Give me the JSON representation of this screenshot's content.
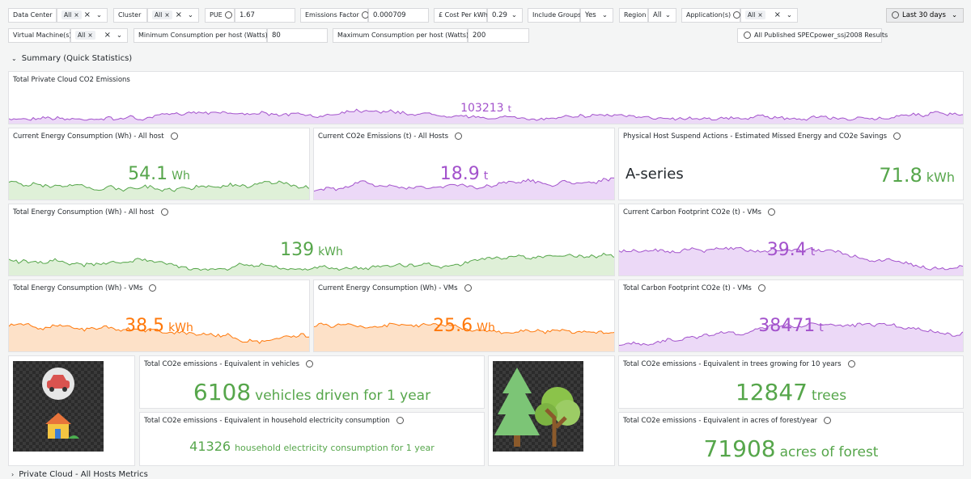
{
  "filters": [
    {
      "label": "Data Center",
      "value": "All"
    },
    {
      "label": "Cluster",
      "value": "All"
    },
    {
      "label": "PUE",
      "value": "1.67"
    },
    {
      "label": "Emissions Factor",
      "value": "0.000709"
    },
    {
      "label": "£ Cost Per kWh",
      "value": "0.29"
    },
    {
      "label": "Include Groups",
      "value": "Yes"
    },
    {
      "label": "Region",
      "value": "All"
    },
    {
      "label": "Application(s)",
      "value": "All"
    },
    {
      "label": "Virtual Machine(s)",
      "value": "All"
    },
    {
      "label": "Minimum Consumption per host (Watts)",
      "value": "80"
    },
    {
      "label": "Maximum Consumption per host (Watts)",
      "value": "200"
    }
  ],
  "time_range": "Last 30 days",
  "link_button": "All Published SPECpower_ssj2008 Results",
  "section": "Summary (Quick Statistics)",
  "panels": [
    {
      "title": "Total Private Cloud CO2 Emissions",
      "value": "103213",
      "unit": "t"
    },
    {
      "title": "Current Energy Consumption (Wh) - All host",
      "value": "54.1",
      "unit": "Wh"
    },
    {
      "title": "Current CO2e Emissions (t) - All Hosts",
      "value": "18.9",
      "unit": "t"
    },
    {
      "title": "Physical Host Suspend Actions - Estimated Missed Energy and CO2e Savings",
      "series_name": "A-series",
      "value": "71.8",
      "unit": "kWh"
    },
    {
      "title": "Total Energy Consumption (Wh) - All host",
      "value": "139",
      "unit": "kWh"
    },
    {
      "title": "Current Carbon Footprint CO2e (t) - VMs",
      "value": "39.4",
      "unit": "t"
    },
    {
      "title": "Total Energy Consumption (Wh) - VMs",
      "value": "38.5",
      "unit": "kWh"
    },
    {
      "title": "Current Energy Consumption (Wh) - VMs",
      "value": "25.6",
      "unit": "Wh"
    },
    {
      "title": "Total Carbon Footprint CO2e (t) - VMs",
      "value": "38471",
      "unit": "t"
    },
    {
      "title": "Total CO2e emissions - Equivalent in vehicles",
      "value": "6108",
      "unit": "vehicles driven for 1 year"
    },
    {
      "title": "Total CO2e emissions - Equivalent in household electricity consumption",
      "value": "41326",
      "unit": "household electricity consumption for 1 year"
    },
    {
      "title": "Total CO2e emissions - Equivalent in trees growing for 10 years",
      "value": "12847",
      "unit": "trees"
    },
    {
      "title": "Total CO2e emissions - Equivalent in acres of forest/year",
      "value": "71908",
      "unit": "acres of forest"
    }
  ],
  "next_section": "Private Cloud - All Hosts Metrics"
}
